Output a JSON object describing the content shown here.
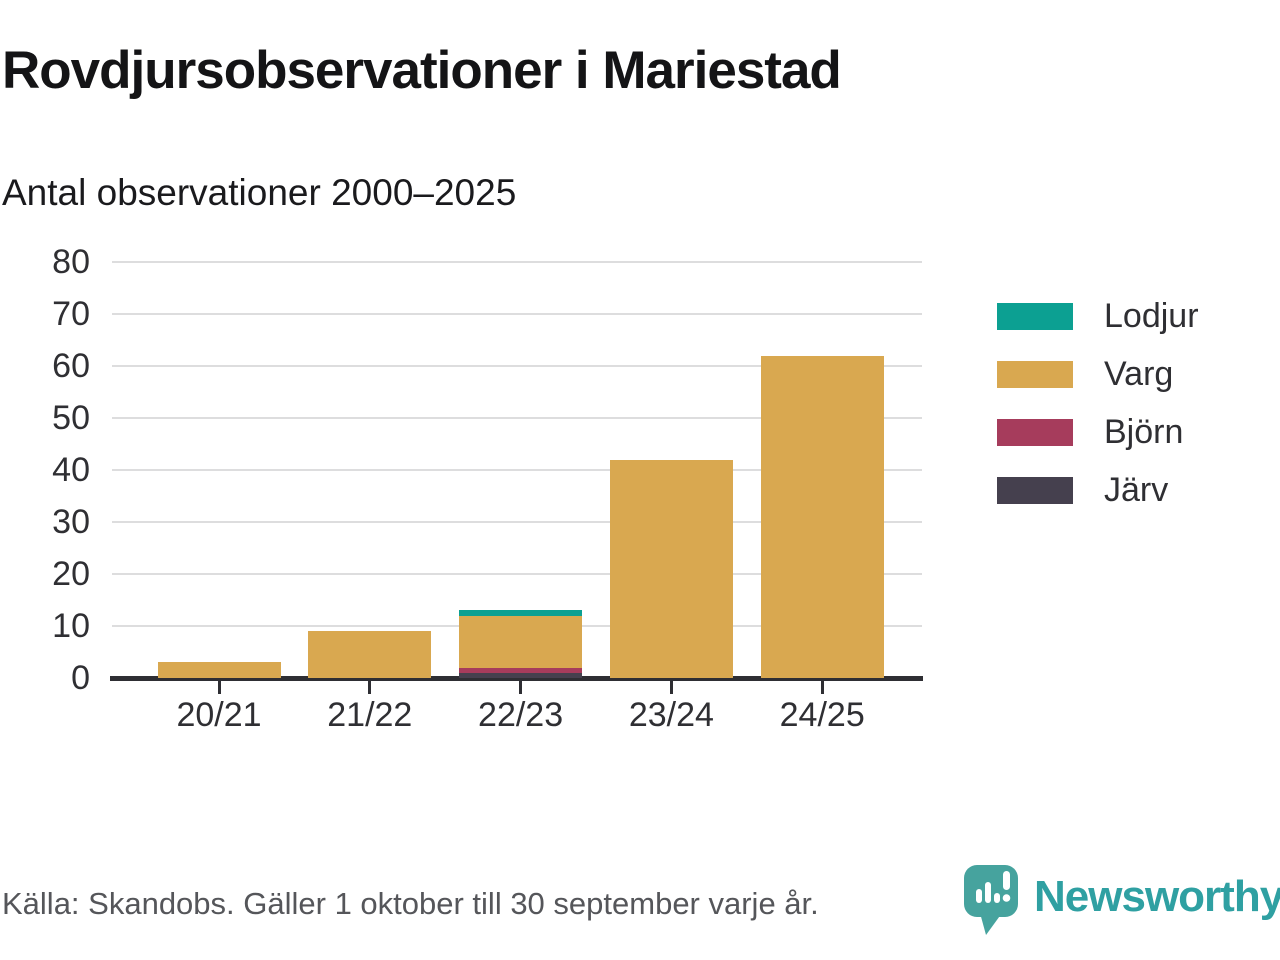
{
  "chart_data": {
    "type": "bar",
    "stacked": true,
    "title": "Rovdjursobservationer i Mariestad",
    "subtitle": "Antal observationer 2000–2025",
    "categories": [
      "20/21",
      "21/22",
      "22/23",
      "23/24",
      "24/25"
    ],
    "series": [
      {
        "name": "Lodjur",
        "slug": "lodjur",
        "color": "#0CA092",
        "values": [
          0,
          0,
          1,
          0,
          0
        ]
      },
      {
        "name": "Varg",
        "slug": "varg",
        "color": "#D9A850",
        "values": [
          3,
          9,
          10,
          42,
          62
        ]
      },
      {
        "name": "Björn",
        "slug": "bjorn",
        "color": "#A63C5C",
        "values": [
          0,
          0,
          1,
          0,
          0
        ]
      },
      {
        "name": "Järv",
        "slug": "jarv",
        "color": "#45404E",
        "values": [
          0,
          0,
          1,
          0,
          0
        ]
      }
    ],
    "stack_order_bottom_to_top": [
      "Järv",
      "Björn",
      "Varg",
      "Lodjur"
    ],
    "xlabel": "",
    "ylabel": "",
    "ylim": [
      0,
      80
    ],
    "yticks": [
      0,
      10,
      20,
      30,
      40,
      50,
      60,
      70,
      80
    ],
    "grid": "horizontal",
    "legend_position": "right"
  },
  "footer": {
    "source": "Källa: Skandobs. Gäller 1 oktober till 30 september varje år.",
    "brand": "Newsworthy"
  },
  "colors": {
    "background": "#FFFFFF",
    "axis": "#2E2E33",
    "grid": "#DDDDDE",
    "tick_text": "#2F2F33",
    "title_text": "#141416",
    "source_text": "#55565A",
    "brand_teal": "#2FA0A2",
    "logo_teal": "#46A39E"
  }
}
